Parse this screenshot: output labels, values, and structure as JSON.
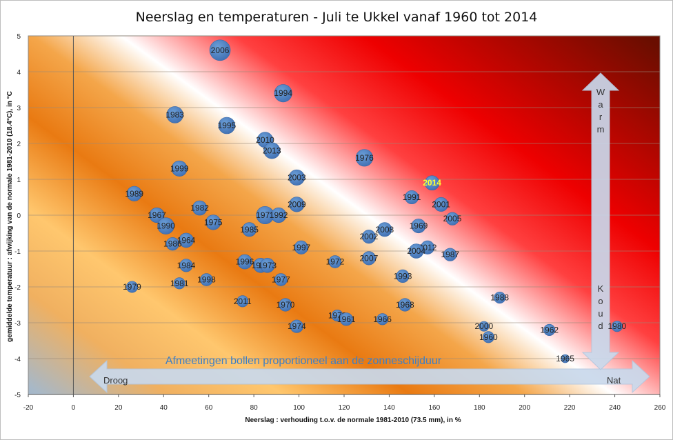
{
  "chart_data": {
    "type": "scatter",
    "title": "Neerslag en temperaturen - Juli te Ukkel vanaf 1960 tot 2014",
    "xlabel": "Neerslag : verhouding t.o.v. de normale 1981-2010 (73.5 mm), in %",
    "ylabel": "gemiddelde temperatuur : afwijking  van de normale 1981-2010 (18.4°C), in °C",
    "xlim": [
      -20,
      260
    ],
    "ylim": [
      -5,
      5
    ],
    "xticks": [
      -20,
      0,
      20,
      40,
      60,
      80,
      100,
      120,
      140,
      160,
      180,
      200,
      220,
      240,
      260
    ],
    "yticks": [
      -5,
      -4,
      -3,
      -2,
      -1,
      0,
      1,
      2,
      3,
      4,
      5
    ],
    "grid": "horizontal",
    "annotation": "Afmeetingen bollen proportioneel aan de zonneschijduur",
    "arrow_left_label": "Droog",
    "arrow_right_label": "Nat",
    "arrow_top_label": "Warm",
    "arrow_bottom_label": "Koud",
    "highlight_year": "2014",
    "points": [
      {
        "label": "2006",
        "x": 65,
        "y": 4.6,
        "size": 1.0
      },
      {
        "label": "1994",
        "x": 93,
        "y": 3.4,
        "size": 0.85
      },
      {
        "label": "1983",
        "x": 45,
        "y": 2.8,
        "size": 0.8
      },
      {
        "label": "1995",
        "x": 68,
        "y": 2.5,
        "size": 0.8
      },
      {
        "label": "2010",
        "x": 85,
        "y": 2.1,
        "size": 0.75
      },
      {
        "label": "2013",
        "x": 88,
        "y": 1.8,
        "size": 0.78
      },
      {
        "label": "1976",
        "x": 129,
        "y": 1.6,
        "size": 0.82
      },
      {
        "label": "1999",
        "x": 47,
        "y": 1.3,
        "size": 0.75
      },
      {
        "label": "2003",
        "x": 99,
        "y": 1.05,
        "size": 0.75
      },
      {
        "label": "2014",
        "x": 159,
        "y": 0.9,
        "size": 0.7
      },
      {
        "label": "1989",
        "x": 27,
        "y": 0.6,
        "size": 0.72
      },
      {
        "label": "1991",
        "x": 150,
        "y": 0.5,
        "size": 0.65
      },
      {
        "label": "2001",
        "x": 163,
        "y": 0.3,
        "size": 0.68
      },
      {
        "label": "2009",
        "x": 99,
        "y": 0.3,
        "size": 0.72
      },
      {
        "label": "1982",
        "x": 56,
        "y": 0.2,
        "size": 0.7
      },
      {
        "label": "1967",
        "x": 37,
        "y": 0.0,
        "size": 0.72
      },
      {
        "label": "1971",
        "x": 85,
        "y": 0.0,
        "size": 0.85
      },
      {
        "label": "1992",
        "x": 91,
        "y": 0.0,
        "size": 0.72
      },
      {
        "label": "2005",
        "x": 168,
        "y": -0.1,
        "size": 0.62
      },
      {
        "label": "1975",
        "x": 62,
        "y": -0.2,
        "size": 0.72
      },
      {
        "label": "1990",
        "x": 41,
        "y": -0.3,
        "size": 0.8
      },
      {
        "label": "1969",
        "x": 153,
        "y": -0.3,
        "size": 0.68
      },
      {
        "label": "1985",
        "x": 78,
        "y": -0.4,
        "size": 0.68
      },
      {
        "label": "2008",
        "x": 138,
        "y": -0.4,
        "size": 0.68
      },
      {
        "label": "2002",
        "x": 131,
        "y": -0.6,
        "size": 0.65
      },
      {
        "label": "1964",
        "x": 50,
        "y": -0.7,
        "size": 0.7
      },
      {
        "label": "1986",
        "x": 44,
        "y": -0.8,
        "size": 0.62
      },
      {
        "label": "2012",
        "x": 157,
        "y": -0.9,
        "size": 0.65
      },
      {
        "label": "1997",
        "x": 101,
        "y": -0.9,
        "size": 0.65
      },
      {
        "label": "2004",
        "x": 152,
        "y": -1.0,
        "size": 0.7
      },
      {
        "label": "1987",
        "x": 167,
        "y": -1.1,
        "size": 0.62
      },
      {
        "label": "2007",
        "x": 131,
        "y": -1.2,
        "size": 0.65
      },
      {
        "label": "1972",
        "x": 116,
        "y": -1.3,
        "size": 0.6
      },
      {
        "label": "1996",
        "x": 76,
        "y": -1.3,
        "size": 0.7
      },
      {
        "label": "1963",
        "x": 83,
        "y": -1.4,
        "size": 0.7
      },
      {
        "label": "1973",
        "x": 86,
        "y": -1.4,
        "size": 0.7
      },
      {
        "label": "1984",
        "x": 50,
        "y": -1.4,
        "size": 0.62
      },
      {
        "label": "1993",
        "x": 146,
        "y": -1.7,
        "size": 0.62
      },
      {
        "label": "1977",
        "x": 92,
        "y": -1.8,
        "size": 0.6
      },
      {
        "label": "1998",
        "x": 59,
        "y": -1.8,
        "size": 0.6
      },
      {
        "label": "1981",
        "x": 47,
        "y": -1.9,
        "size": 0.55
      },
      {
        "label": "1979",
        "x": 26,
        "y": -2.0,
        "size": 0.55
      },
      {
        "label": "1988",
        "x": 189,
        "y": -2.3,
        "size": 0.55
      },
      {
        "label": "2011",
        "x": 75,
        "y": -2.4,
        "size": 0.55
      },
      {
        "label": "1970",
        "x": 94,
        "y": -2.5,
        "size": 0.62
      },
      {
        "label": "1968",
        "x": 147,
        "y": -2.5,
        "size": 0.62
      },
      {
        "label": "1978",
        "x": 117,
        "y": -2.8,
        "size": 0.55
      },
      {
        "label": "1961",
        "x": 121,
        "y": -2.9,
        "size": 0.62
      },
      {
        "label": "1966",
        "x": 137,
        "y": -2.9,
        "size": 0.55
      },
      {
        "label": "1974",
        "x": 99,
        "y": -3.1,
        "size": 0.62
      },
      {
        "label": "2000",
        "x": 182,
        "y": -3.1,
        "size": 0.48
      },
      {
        "label": "1980",
        "x": 241,
        "y": -3.1,
        "size": 0.52
      },
      {
        "label": "1962",
        "x": 211,
        "y": -3.2,
        "size": 0.55
      },
      {
        "label": "1960",
        "x": 184,
        "y": -3.4,
        "size": 0.55
      },
      {
        "label": "1965",
        "x": 218,
        "y": -4.0,
        "size": 0.4
      }
    ]
  }
}
